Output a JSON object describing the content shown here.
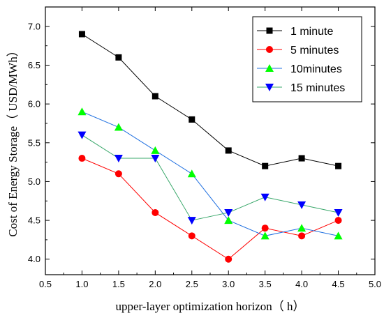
{
  "chart_data": {
    "type": "line",
    "xlabel": "upper-layer optimization horizon（ h）",
    "ylabel": "Cost of Energy Storage（ USD/MWh）",
    "xlim": [
      0.5,
      5.0
    ],
    "ylim": [
      3.8,
      7.25
    ],
    "x_ticks": [
      "0.5",
      "1.0",
      "1.5",
      "2.0",
      "2.5",
      "3.0",
      "3.5",
      "4.0",
      "4.5",
      "5.0"
    ],
    "y_ticks": [
      "4.0",
      "4.5",
      "5.0",
      "5.5",
      "6.0",
      "6.5",
      "7.0"
    ],
    "grid": false,
    "legend_position": "top-right",
    "x": [
      1.0,
      1.5,
      2.0,
      2.5,
      3.0,
      3.5,
      4.0,
      4.5
    ],
    "series": [
      {
        "name": "1 minute",
        "color": "#000000",
        "marker": "square",
        "values": [
          6.9,
          6.6,
          6.1,
          5.8,
          5.4,
          5.2,
          5.3,
          5.2
        ]
      },
      {
        "name": "5 minutes",
        "color": "#ff0000",
        "marker": "circle",
        "values": [
          5.3,
          5.1,
          4.6,
          4.3,
          4.0,
          4.4,
          4.3,
          4.5
        ]
      },
      {
        "name": "10minutes",
        "color": "#00ff00",
        "line_color": "#1e6fe0",
        "marker": "triangle-up",
        "values": [
          5.9,
          5.7,
          5.4,
          5.1,
          4.5,
          4.3,
          4.4,
          4.3
        ]
      },
      {
        "name": "15 minutes",
        "color": "#0000ff",
        "line_color": "#3aa86b",
        "marker": "triangle-down",
        "values": [
          5.6,
          5.3,
          5.3,
          4.5,
          4.6,
          4.8,
          4.7,
          4.6
        ]
      }
    ]
  }
}
